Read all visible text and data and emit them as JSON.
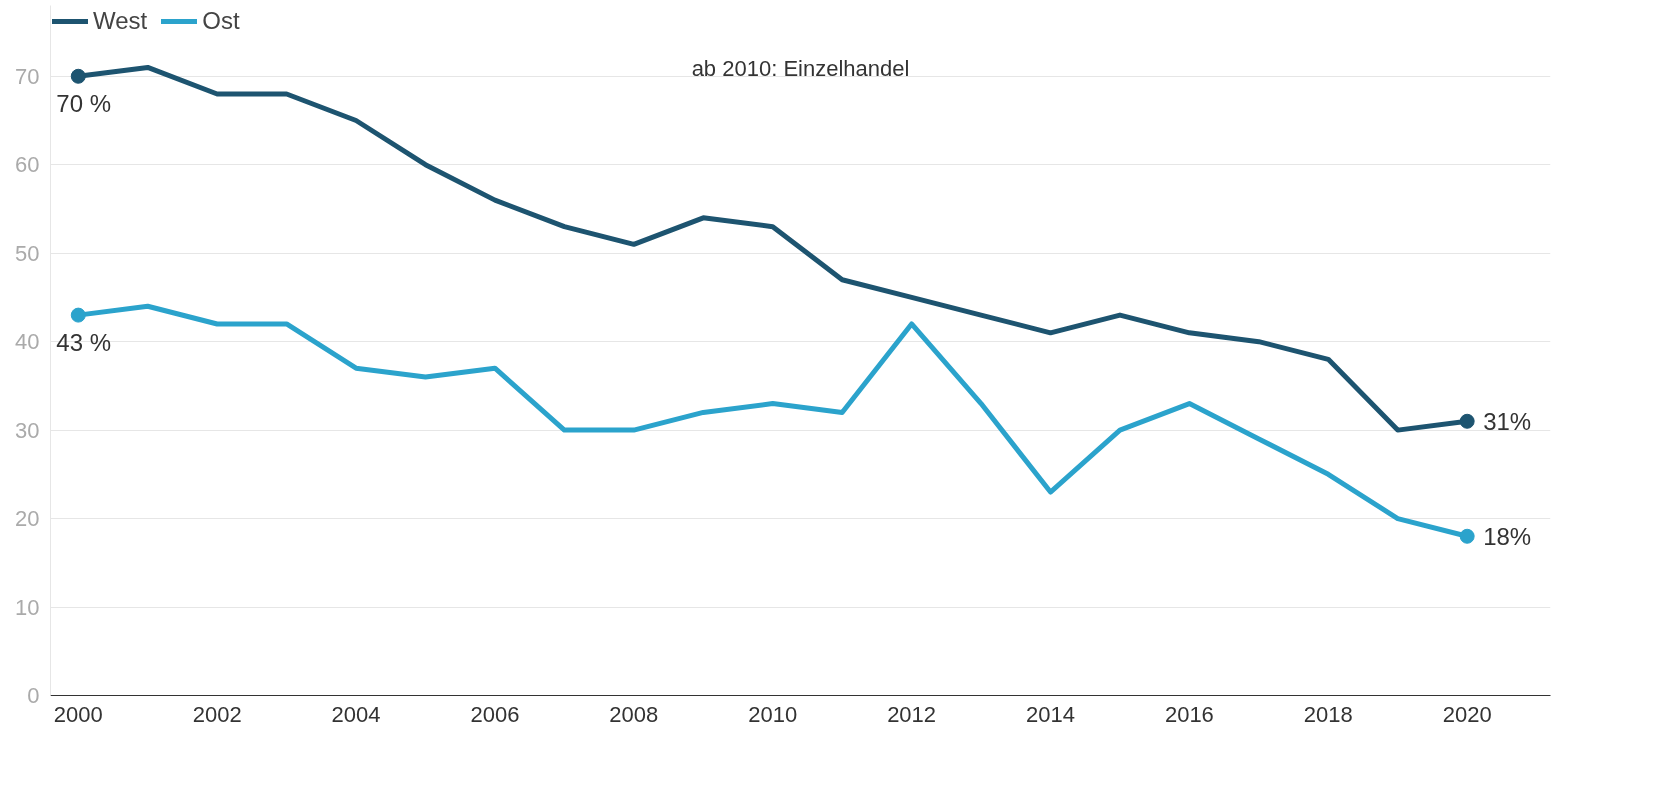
{
  "chart_data": {
    "type": "line",
    "x": [
      2000,
      2001,
      2002,
      2003,
      2004,
      2005,
      2006,
      2007,
      2008,
      2009,
      2010,
      2011,
      2012,
      2013,
      2014,
      2015,
      2016,
      2017,
      2018,
      2019,
      2020
    ],
    "series": [
      {
        "name": "West",
        "color": "#1d5470",
        "values": [
          70,
          71,
          68,
          68,
          65,
          60,
          56,
          53,
          51,
          54,
          53,
          47,
          45,
          43,
          41,
          43,
          41,
          40,
          38,
          30,
          31
        ],
        "value_labels": [
          "70 %",
          null,
          null,
          null,
          null,
          null,
          null,
          null,
          null,
          null,
          null,
          null,
          null,
          null,
          null,
          null,
          null,
          null,
          null,
          null,
          "31%"
        ]
      },
      {
        "name": "Ost",
        "color": "#2ba3cc",
        "values": [
          43,
          44,
          42,
          42,
          37,
          36,
          37,
          30,
          30,
          32,
          33,
          32,
          42,
          33,
          23,
          30,
          33,
          29,
          25,
          20,
          18
        ],
        "value_labels": [
          "43 %",
          null,
          null,
          null,
          null,
          null,
          null,
          null,
          null,
          null,
          null,
          null,
          null,
          null,
          null,
          null,
          null,
          null,
          null,
          null,
          "18%"
        ]
      }
    ],
    "annotations": [
      "ab 2010: Einzelhandel"
    ],
    "xlim": [
      1999.6,
      2021.2
    ],
    "xticks": [
      2000,
      2002,
      2004,
      2006,
      2008,
      2010,
      2012,
      2014,
      2016,
      2018,
      2020
    ],
    "ylim": [
      0,
      78
    ],
    "yticks": [
      0,
      10,
      20,
      30,
      40,
      50,
      60,
      70
    ],
    "grid": "y",
    "legend": "top left"
  }
}
